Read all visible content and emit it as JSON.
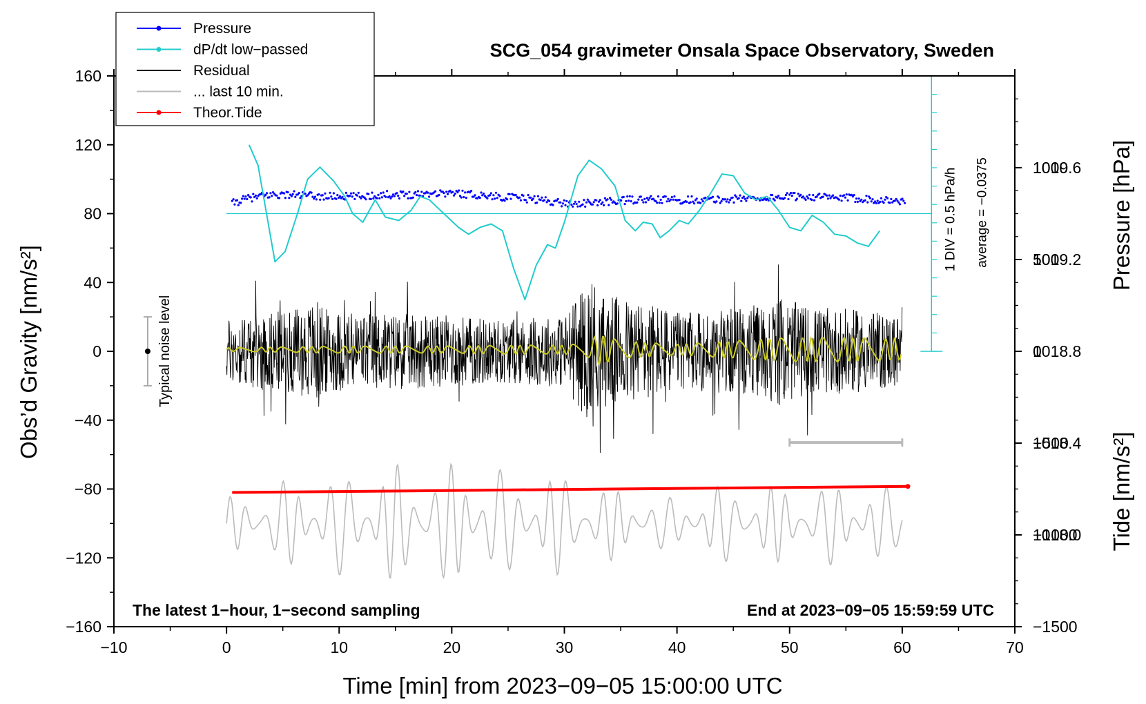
{
  "chart_data": {
    "type": "line",
    "title": "SCG_054 gravimeter Onsala Space Observatory, Sweden",
    "xlabel": "Time [min] from 2023−09−05 15:00:00 UTC",
    "ylabel": "Obs’d Gravity [nm/s²]",
    "xlim": [
      -10,
      70
    ],
    "ylim": [
      -160,
      160
    ],
    "x_ticks": [
      -10,
      0,
      10,
      20,
      30,
      40,
      50,
      60,
      70
    ],
    "y_ticks": [
      -160,
      -120,
      -80,
      -40,
      0,
      40,
      80,
      120,
      160
    ],
    "x_tick_labels": [
      "−10",
      "0",
      "10",
      "20",
      "30",
      "40",
      "50",
      "60",
      "70"
    ],
    "y_tick_labels": [
      "−160",
      "−120",
      "−80",
      "−40",
      "0",
      "40",
      "80",
      "120",
      "160"
    ],
    "pressure_axis": {
      "label": "Pressure [hPa]",
      "ticks": [
        1018.0,
        1018.4,
        1018.8,
        1019.2,
        1019.6
      ],
      "tick_labels": [
        "1018.0",
        "1018.4",
        "1018.8",
        "1019.2",
        "1019.6"
      ],
      "range": [
        1017.6,
        1020.0
      ]
    },
    "tide_axis": {
      "label": "Tide [nm/s²]",
      "ticks": [
        -1500,
        -1000,
        -500,
        0,
        500,
        1000
      ],
      "tick_labels": [
        "−1500",
        "−1000",
        "−500",
        "0",
        "500",
        "1000"
      ],
      "range": [
        -1500,
        1500
      ]
    },
    "legend": [
      {
        "label": "Pressure",
        "color": "#0000ff",
        "marker": true
      },
      {
        "label": "dP/dt low−passed",
        "color": "#22cccc",
        "marker": true
      },
      {
        "label": "Residual",
        "color": "#000000",
        "marker": false
      },
      {
        "label": "... last 10 min.",
        "color": "#bbbbbb",
        "marker": false
      },
      {
        "label": "Theor.Tide",
        "color": "#ff0000",
        "marker": true
      }
    ],
    "legend_position": "top-left",
    "annotations": {
      "noise_label": "Typical noise level",
      "noise_range": [
        -20,
        20
      ],
      "noise_x": -7,
      "div_label": "1 DIV = 0.5 hPa/h",
      "average_label": "average = −0.0375",
      "left_note": "The latest 1−hour, 1−second sampling",
      "right_note": "End at 2023−09−05 15:59:59 UTC",
      "last10_bar_range": [
        50,
        60
      ],
      "dpdt_zero_level": 80
    },
    "series": [
      {
        "name": "Pressure",
        "color": "#0000ff",
        "x": [
          0.5,
          2,
          4,
          6,
          8,
          10,
          12,
          14,
          16,
          18,
          20,
          22,
          24,
          26,
          28,
          30,
          32,
          34,
          36,
          38,
          40,
          42,
          44,
          46,
          48,
          50,
          52,
          54,
          56,
          58,
          60.3
        ],
        "y": [
          86,
          89,
          91,
          91,
          90,
          90,
          90,
          91,
          91,
          92,
          92,
          91,
          90,
          89,
          88,
          86,
          86,
          87,
          88,
          88,
          88,
          88,
          88,
          89,
          89,
          90,
          90,
          89,
          89,
          88,
          87
        ]
      },
      {
        "name": "dP/dt low−passed",
        "color": "#22cccc",
        "x": [
          2,
          2.8,
          3.5,
          4.3,
          5.2,
          6.3,
          7.2,
          8.3,
          9.5,
          10.5,
          11.2,
          12.1,
          13.2,
          14.1,
          15.3,
          16.4,
          17.2,
          18.0,
          19.3,
          20.6,
          21.5,
          22.5,
          23.5,
          24.5,
          25.5,
          26.5,
          27.5,
          28.5,
          29.2,
          30.0,
          31.2,
          32.2,
          33.3,
          34.5,
          35.4,
          36.3,
          37.0,
          37.8,
          38.5,
          39.3,
          40.2,
          41.0,
          42.0,
          43.0,
          44.0,
          45.0,
          46.0,
          47.0,
          48.0,
          49.0,
          50.0,
          51.0,
          52.0,
          53.0,
          54.0,
          55.0,
          56.0,
          57.0,
          58.0
        ],
        "y": [
          120,
          108,
          82,
          52,
          58,
          80,
          100,
          107,
          99,
          90,
          80,
          75,
          88,
          78,
          76,
          82,
          90,
          88,
          80,
          72,
          68,
          72,
          74,
          70,
          48,
          30,
          50,
          62,
          60,
          75,
          102,
          111,
          106,
          96,
          76,
          70,
          75,
          74,
          66,
          70,
          76,
          74,
          82,
          92,
          103,
          102,
          92,
          88,
          90,
          82,
          72,
          70,
          79,
          75,
          68,
          67,
          63,
          61,
          70
        ]
      },
      {
        "name": "Theor.Tide",
        "color": "#ff0000",
        "x": [
          0.5,
          60.5
        ],
        "y": [
          -82,
          -78.5
        ]
      }
    ],
    "residual_envelope": {
      "name": "Residual",
      "color": "#000000",
      "x": [
        0,
        3,
        6,
        8,
        9,
        12,
        15,
        18,
        20,
        25,
        30,
        32.5,
        33,
        35,
        38,
        40,
        45,
        48,
        49,
        52,
        55,
        60
      ],
      "amplitude": [
        25,
        30,
        32,
        40,
        32,
        30,
        30,
        28,
        28,
        25,
        28,
        60,
        45,
        42,
        38,
        30,
        33,
        38,
        42,
        34,
        33,
        28
      ]
    },
    "smoothed_residual": {
      "color": "#cccc22",
      "x": [
        0,
        5,
        10,
        15,
        20,
        25,
        30,
        32,
        33,
        35,
        40,
        45,
        50,
        55,
        60
      ],
      "amplitude": [
        1,
        1.5,
        2,
        2,
        2,
        2.5,
        2.5,
        4,
        9,
        5,
        3,
        5,
        7,
        7,
        6
      ]
    },
    "last10": {
      "name": "... last 10 min.",
      "color": "#bbbbbb",
      "center": -100,
      "x": [
        0,
        5,
        10,
        15,
        20,
        21.5,
        25,
        30,
        35,
        40,
        45,
        50,
        55,
        60
      ],
      "amplitude": [
        15,
        25,
        30,
        35,
        35,
        42,
        30,
        30,
        20,
        15,
        25,
        22,
        25,
        20
      ]
    }
  }
}
